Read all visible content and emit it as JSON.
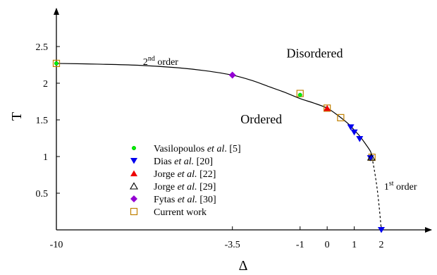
{
  "chart_data": {
    "type": "scatter",
    "title": "",
    "xlabel": "Δ",
    "ylabel": "T",
    "xlim": [
      -10,
      3.3
    ],
    "ylim": [
      0,
      2.7
    ],
    "x_ticks": [
      -10,
      -3.5,
      -1,
      0,
      1,
      2
    ],
    "y_ticks": [
      0.5,
      1,
      1.5,
      2,
      2.5
    ],
    "grid": false,
    "legend_position": "center-left",
    "annotations": [
      {
        "id": "second-order",
        "base": "2",
        "sup": "nd",
        "text": " order",
        "x": -6.8,
        "y": 2.25
      },
      {
        "id": "first-order",
        "base": "1",
        "sup": "st",
        "text": " order",
        "x": 2.1,
        "y": 0.55
      },
      {
        "id": "disordered",
        "text": "Disordered",
        "x": -1.5,
        "y": 2.35
      },
      {
        "id": "ordered",
        "text": "Ordered",
        "x": -3.2,
        "y": 1.45
      }
    ],
    "curves": [
      {
        "name": "second-order-line",
        "style": "solid",
        "x": [
          -10,
          -8.5,
          -7,
          -5.5,
          -4.5,
          -3.5,
          -2.8,
          -2.2,
          -1.6,
          -1.0,
          -0.5,
          0.0,
          0.4,
          0.8,
          1.0,
          1.2,
          1.4,
          1.6,
          1.655
        ],
        "y": [
          2.27,
          2.26,
          2.245,
          2.21,
          2.17,
          2.11,
          2.04,
          1.96,
          1.88,
          1.79,
          1.73,
          1.66,
          1.56,
          1.44,
          1.36,
          1.28,
          1.18,
          1.07,
          0.99
        ]
      },
      {
        "name": "first-order-line",
        "style": "dashed",
        "x": [
          1.655,
          1.75,
          1.85,
          1.93,
          2.0
        ],
        "y": [
          0.99,
          0.8,
          0.55,
          0.28,
          0.0
        ]
      }
    ],
    "series": [
      {
        "name": "Vasilopoulos et al. [5]",
        "marker": "circle",
        "color": "#00ee00",
        "x": [
          -10,
          -1
        ],
        "y": [
          2.27,
          1.84
        ]
      },
      {
        "name": "Dias et al. [20]",
        "marker": "triangle-down",
        "color": "#0000ee",
        "x": [
          0.87,
          1.0,
          1.2,
          1.6,
          2.0
        ],
        "y": [
          1.4,
          1.33,
          1.24,
          0.98,
          0.0
        ]
      },
      {
        "name": "Jorge et al. [22]",
        "marker": "triangle-up",
        "color": "#ee0000",
        "x": [
          0
        ],
        "y": [
          1.66
        ]
      },
      {
        "name": "Jorge et al. [29]",
        "marker": "triangle-up-open",
        "color": "#000000",
        "x": [
          1.63
        ],
        "y": [
          0.99
        ]
      },
      {
        "name": "Fytas et al. [30]",
        "marker": "diamond",
        "color": "#9400d3",
        "x": [
          -3.5
        ],
        "y": [
          2.11
        ]
      },
      {
        "name": "Current work",
        "marker": "square-open",
        "color": "#c08000",
        "x": [
          -10,
          -1,
          0,
          0.5,
          1.655
        ],
        "y": [
          2.27,
          1.86,
          1.66,
          1.53,
          0.99
        ]
      }
    ],
    "legend": [
      {
        "prefix": "Vasilopoulos ",
        "ital": "et al",
        "suffix": ". [5]",
        "marker": "circle",
        "color": "#00ee00"
      },
      {
        "prefix": "Dias ",
        "ital": "et al.",
        "suffix": " [20]",
        "marker": "triangle-down",
        "color": "#0000ee"
      },
      {
        "prefix": "Jorge ",
        "ital": "et al.",
        "suffix": " [22]",
        "marker": "triangle-up",
        "color": "#ee0000"
      },
      {
        "prefix": "Jorge ",
        "ital": "et al.",
        "suffix": " [29]",
        "marker": "triangle-up-open",
        "color": "#000000"
      },
      {
        "prefix": "Fytas ",
        "ital": "et al.",
        "suffix": " [30]",
        "marker": "diamond",
        "color": "#9400d3"
      },
      {
        "prefix": "Current work",
        "ital": "",
        "suffix": "",
        "marker": "square-open",
        "color": "#c08000"
      }
    ]
  }
}
